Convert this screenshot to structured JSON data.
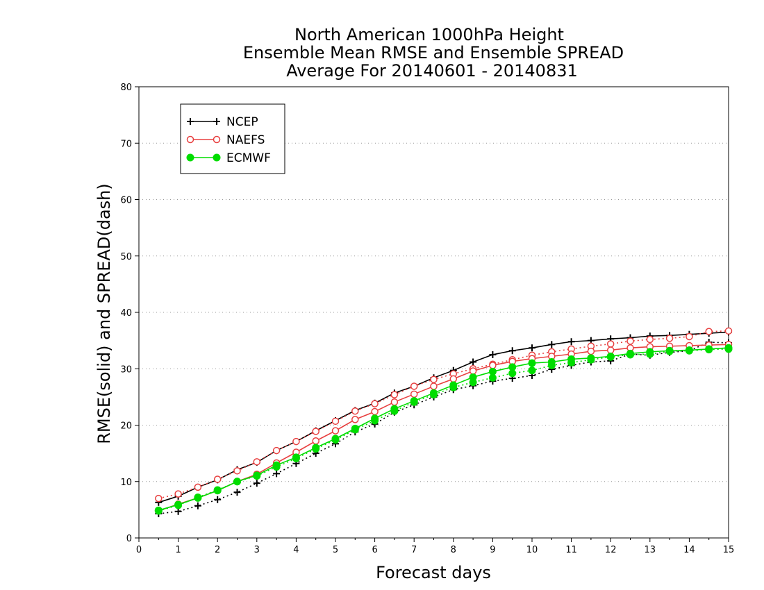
{
  "chart_data": {
    "type": "line",
    "title": [
      "North American 1000hPa Height",
      "Ensemble Mean RMSE and Ensemble SPREAD",
      "Average For 20140601 - 20140831"
    ],
    "xlabel": "Forecast days",
    "ylabel": "RMSE(solid) and SPREAD(dash)",
    "xlim": [
      0,
      15
    ],
    "ylim": [
      0,
      80
    ],
    "x_ticks": [
      "0",
      "1",
      "2",
      "3",
      "4",
      "5",
      "6",
      "7",
      "8",
      "9",
      "10",
      "11",
      "12",
      "13",
      "14",
      "15"
    ],
    "y_ticks": [
      "0",
      "10",
      "20",
      "30",
      "40",
      "50",
      "60",
      "70",
      "80"
    ],
    "grid": "horizontal dotted",
    "legend_position": "top-left",
    "x": [
      0.5,
      1,
      1.5,
      2,
      2.5,
      3,
      3.5,
      4,
      4.5,
      5,
      5.5,
      6,
      6.5,
      7,
      7.5,
      8,
      8.5,
      9,
      9.5,
      10,
      10.5,
      11,
      11.5,
      12,
      12.5,
      13,
      13.5,
      14,
      14.5,
      15
    ],
    "series": [
      {
        "name": "NCEP",
        "color": "#000000",
        "marker": "plus",
        "rmse": [
          6.3,
          7.4,
          9.0,
          10.3,
          12.1,
          13.4,
          15.5,
          17.1,
          19.0,
          20.8,
          22.6,
          23.9,
          25.7,
          26.9,
          28.4,
          29.7,
          31.2,
          32.5,
          33.2,
          33.7,
          34.3,
          34.8,
          35.0,
          35.3,
          35.5,
          35.8,
          35.9,
          36.1,
          36.3,
          36.5
        ],
        "spread": [
          4.3,
          4.7,
          5.7,
          6.8,
          8.1,
          9.7,
          11.4,
          13.2,
          15.0,
          16.7,
          18.8,
          20.2,
          22.3,
          23.6,
          25.0,
          26.3,
          27.0,
          27.8,
          28.3,
          28.8,
          29.9,
          30.6,
          31.2,
          31.4,
          32.6,
          32.4,
          32.9,
          33.2,
          34.7,
          34.6
        ]
      },
      {
        "name": "NAEFS",
        "color": "#e84040",
        "marker": "open-circle",
        "rmse": [
          4.8,
          6.0,
          7.1,
          8.4,
          10.0,
          11.3,
          13.3,
          15.2,
          17.2,
          19.0,
          21.0,
          22.4,
          24.1,
          25.5,
          26.9,
          28.2,
          29.6,
          30.6,
          31.3,
          31.8,
          32.2,
          32.6,
          33.1,
          33.3,
          33.7,
          33.9,
          34.0,
          34.1,
          34.2,
          34.3
        ],
        "spread": [
          7.0,
          7.8,
          9.0,
          10.4,
          11.9,
          13.5,
          15.5,
          17.1,
          18.9,
          20.7,
          22.5,
          23.8,
          25.4,
          26.9,
          28.1,
          29.1,
          30.0,
          30.8,
          31.6,
          32.4,
          33.0,
          33.5,
          34.0,
          34.4,
          34.9,
          35.2,
          35.4,
          35.7,
          36.6,
          36.7
        ]
      },
      {
        "name": "ECMWF",
        "color": "#00dd00",
        "marker": "filled-circle",
        "rmse": [
          4.9,
          5.9,
          7.1,
          8.4,
          10.0,
          11.1,
          12.9,
          14.3,
          16.0,
          17.6,
          19.4,
          21.2,
          22.9,
          24.3,
          25.7,
          27.1,
          28.5,
          29.5,
          30.3,
          31.0,
          31.2,
          31.7,
          31.9,
          32.2,
          32.7,
          33.0,
          33.2,
          33.3,
          33.5,
          33.7
        ],
        "spread": [
          4.8,
          5.8,
          7.2,
          8.5,
          10.0,
          11.0,
          12.6,
          14.1,
          15.8,
          17.4,
          19.2,
          20.8,
          22.5,
          24.1,
          25.4,
          26.7,
          27.6,
          28.4,
          29.2,
          29.7,
          30.6,
          31.1,
          31.6,
          32.1,
          32.5,
          32.6,
          33.1,
          33.2,
          33.4,
          33.5
        ]
      }
    ]
  }
}
